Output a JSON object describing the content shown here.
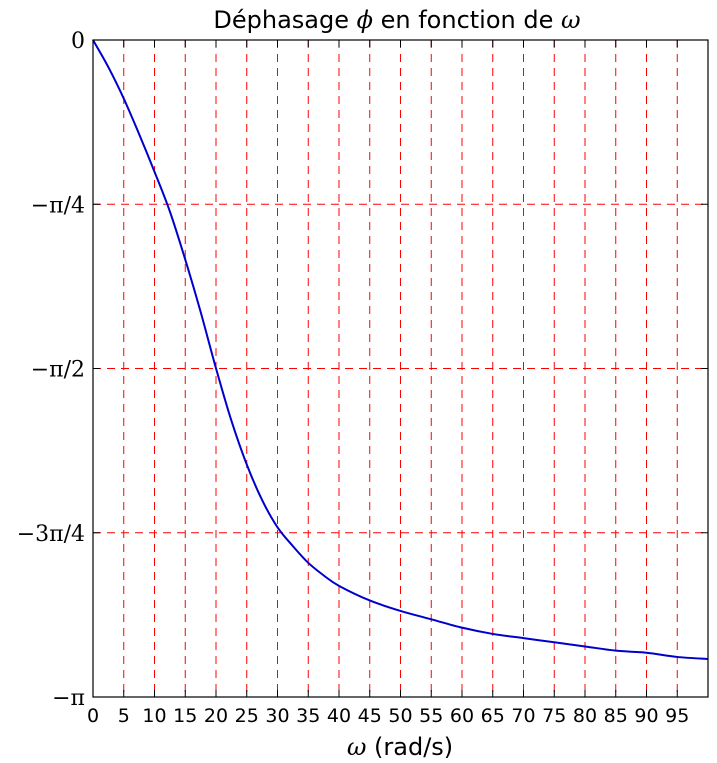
{
  "chart_data": {
    "type": "line",
    "title": {
      "prefix": "Déphasage ",
      "phi": "ϕ",
      "middle": " en fonction de ",
      "omega": "ω"
    },
    "xlabel": {
      "omega": "ω",
      "unit": " (rad/s)"
    },
    "xlim": [
      0,
      100
    ],
    "ylim": [
      -3.14159265,
      0
    ],
    "x_ticks": [
      0,
      5,
      10,
      15,
      20,
      25,
      30,
      35,
      40,
      45,
      50,
      55,
      60,
      65,
      70,
      75,
      80,
      85,
      90,
      95
    ],
    "x_tick_labels": [
      "0",
      "5",
      "10",
      "15",
      "20",
      "25",
      "30",
      "35",
      "40",
      "45",
      "50",
      "55",
      "60",
      "65",
      "70",
      "75",
      "80",
      "85",
      "90",
      "95"
    ],
    "y_ticks": [
      0,
      -0.78539816,
      -1.57079633,
      -2.35619449,
      -3.14159265
    ],
    "y_tick_labels": [
      "0",
      "−π/4",
      "−π/2",
      "−3π/4",
      "−π"
    ],
    "grid": true,
    "grid_color": "#ff0000",
    "line_color": "#0000cc",
    "series": [
      {
        "x": [
          0,
          2.5,
          5,
          7.5,
          10,
          12.5,
          15,
          17.5,
          20,
          22.5,
          25,
          27.5,
          30,
          32.5,
          35,
          37.5,
          40,
          45,
          50,
          55,
          60,
          65,
          70,
          75,
          80,
          85,
          90,
          95,
          100
        ],
        "y": [
          0,
          -0.13,
          -0.28,
          -0.45,
          -0.63,
          -0.82,
          -1.05,
          -1.3,
          -1.57,
          -1.82,
          -2.03,
          -2.2,
          -2.33,
          -2.42,
          -2.5,
          -2.56,
          -2.61,
          -2.68,
          -2.73,
          -2.77,
          -2.81,
          -2.84,
          -2.86,
          -2.88,
          -2.9,
          -2.92,
          -2.93,
          -2.95,
          -2.96
        ]
      }
    ]
  }
}
